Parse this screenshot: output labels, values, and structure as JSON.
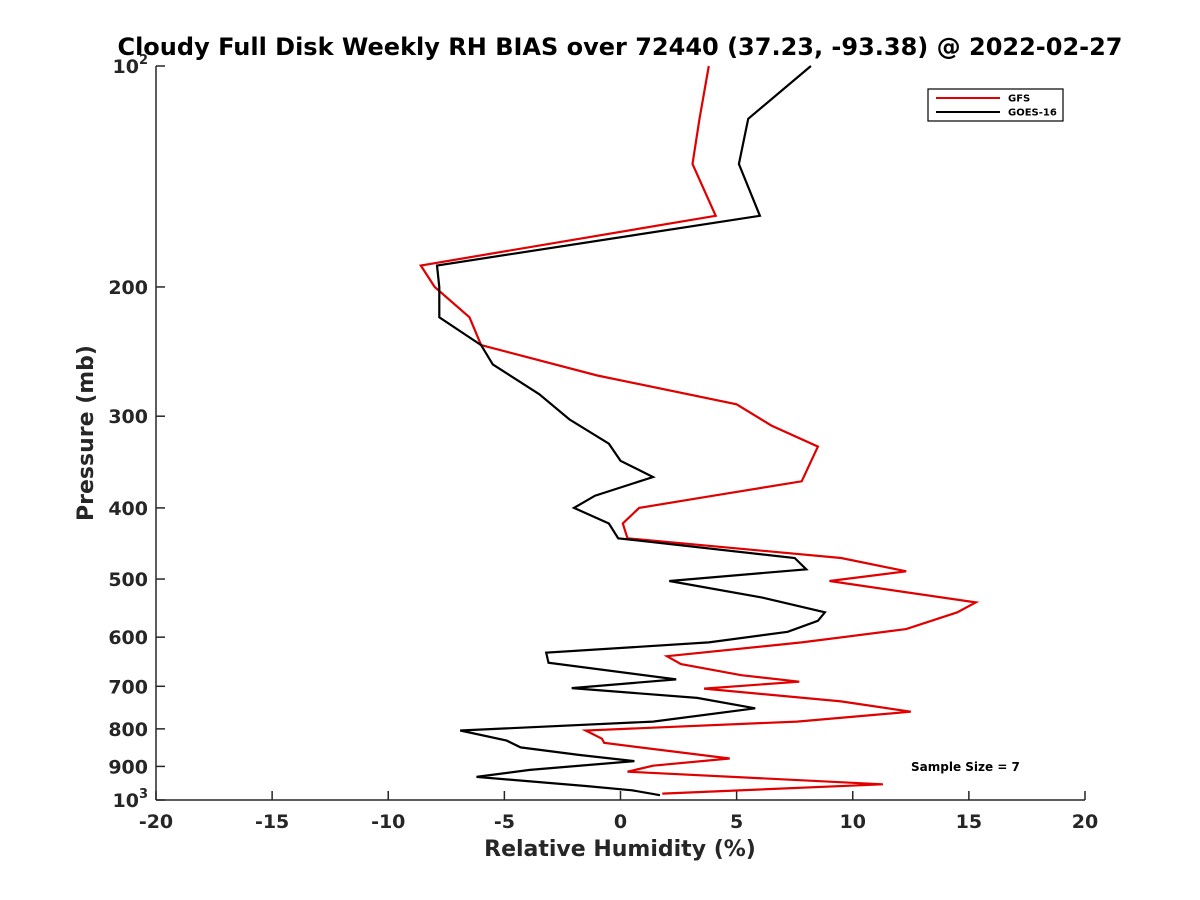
{
  "chart_data": {
    "type": "line",
    "title": "Cloudy Full Disk Weekly RH BIAS over 72440 (37.23, -93.38) @ 2022-02-27",
    "xlabel": "Relative Humidity (%)",
    "ylabel": "Pressure (mb)",
    "xlim": [
      -20,
      20
    ],
    "ylim": [
      100,
      1000
    ],
    "y_scale": "log",
    "y_reversed": true,
    "x_ticks": [
      "-20",
      "-15",
      "-10",
      "-5",
      "0",
      "5",
      "10",
      "15",
      "20"
    ],
    "y_ticks": [
      {
        "value": 100,
        "base": "10",
        "exp": "2"
      },
      {
        "value": 200,
        "base": "200",
        "exp": ""
      },
      {
        "value": 300,
        "base": "300",
        "exp": ""
      },
      {
        "value": 400,
        "base": "400",
        "exp": ""
      },
      {
        "value": 500,
        "base": "500",
        "exp": ""
      },
      {
        "value": 600,
        "base": "600",
        "exp": ""
      },
      {
        "value": 700,
        "base": "700",
        "exp": ""
      },
      {
        "value": 800,
        "base": "800",
        "exp": ""
      },
      {
        "value": 900,
        "base": "900",
        "exp": ""
      },
      {
        "value": 1000,
        "base": "10",
        "exp": "3"
      }
    ],
    "grid": false,
    "legend_position": "top-right",
    "annotation": "Sample Size = 7",
    "series": [
      {
        "name": "GFS",
        "color": "#e00000",
        "points": [
          [
            3.8,
            100
          ],
          [
            3.4,
            118
          ],
          [
            3.1,
            136
          ],
          [
            4.1,
            160
          ],
          [
            -8.6,
            187
          ],
          [
            -8.0,
            200
          ],
          [
            -6.5,
            220
          ],
          [
            -6.0,
            240
          ],
          [
            -1.0,
            264
          ],
          [
            5.0,
            289
          ],
          [
            6.5,
            309
          ],
          [
            8.5,
            330
          ],
          [
            7.8,
            368
          ],
          [
            4.0,
            385
          ],
          [
            0.8,
            400
          ],
          [
            0.1,
            420
          ],
          [
            0.3,
            440
          ],
          [
            9.5,
            468
          ],
          [
            12.3,
            488
          ],
          [
            9.0,
            503
          ],
          [
            15.3,
            538
          ],
          [
            14.5,
            555
          ],
          [
            12.3,
            585
          ],
          [
            7.8,
            610
          ],
          [
            2.0,
            637
          ],
          [
            2.6,
            653
          ],
          [
            5.2,
            676
          ],
          [
            7.7,
            690
          ],
          [
            3.6,
            705
          ],
          [
            9.5,
            734
          ],
          [
            12.5,
            758
          ],
          [
            7.6,
            782
          ],
          [
            -1.5,
            804
          ],
          [
            -0.8,
            825
          ],
          [
            -0.7,
            836
          ],
          [
            4.7,
            878
          ],
          [
            1.4,
            898
          ],
          [
            0.3,
            915
          ],
          [
            11.3,
            952
          ],
          [
            1.8,
            980
          ]
        ]
      },
      {
        "name": "GOES-16",
        "color": "#000000",
        "points": [
          [
            8.2,
            100
          ],
          [
            5.5,
            118
          ],
          [
            5.1,
            136
          ],
          [
            6.0,
            160
          ],
          [
            -7.9,
            187
          ],
          [
            -7.8,
            200
          ],
          [
            -7.8,
            220
          ],
          [
            -6.0,
            240
          ],
          [
            -5.5,
            255
          ],
          [
            -3.5,
            280
          ],
          [
            -2.2,
            303
          ],
          [
            -0.5,
            327
          ],
          [
            0.0,
            345
          ],
          [
            1.4,
            363
          ],
          [
            -1.1,
            385
          ],
          [
            -2.0,
            400
          ],
          [
            -0.5,
            420
          ],
          [
            -0.1,
            440
          ],
          [
            7.5,
            468
          ],
          [
            8.0,
            485
          ],
          [
            2.1,
            503
          ],
          [
            6.1,
            530
          ],
          [
            8.8,
            555
          ],
          [
            8.5,
            570
          ],
          [
            7.2,
            590
          ],
          [
            3.8,
            610
          ],
          [
            -3.2,
            630
          ],
          [
            -3.1,
            650
          ],
          [
            2.4,
            685
          ],
          [
            -2.1,
            704
          ],
          [
            3.3,
            726
          ],
          [
            5.8,
            750
          ],
          [
            1.4,
            782
          ],
          [
            -6.9,
            804
          ],
          [
            -4.9,
            830
          ],
          [
            -4.3,
            848
          ],
          [
            -1.8,
            868
          ],
          [
            0.6,
            885
          ],
          [
            -3.9,
            910
          ],
          [
            -6.2,
            930
          ],
          [
            -1.5,
            957
          ],
          [
            0.5,
            970
          ],
          [
            1.7,
            985
          ]
        ]
      }
    ]
  }
}
